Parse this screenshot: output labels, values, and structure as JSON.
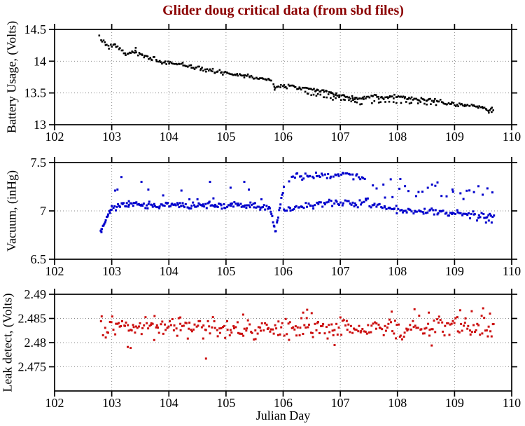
{
  "figure": {
    "title": "Glider doug critical data (from sbd files)",
    "title_color": "#8B0000",
    "xlabel": "Julian Day",
    "background": "#ffffff"
  },
  "chart_data": [
    {
      "id": "battery",
      "type": "scatter",
      "ylabel": "Battery Usage, (Volts)",
      "marker_color": "#000000",
      "marker_size": 2.6,
      "seed": 7,
      "xlim": [
        102,
        110
      ],
      "ylim": [
        13,
        14.5
      ],
      "xticks": [
        102,
        103,
        104,
        105,
        106,
        107,
        108,
        109,
        110
      ],
      "xtick_labels": [
        "102",
        "103",
        "104",
        "105",
        "106",
        "107",
        "108",
        "109",
        "110"
      ],
      "yticks": [
        13,
        13.5,
        14,
        14.5
      ],
      "ytick_labels": [
        "13",
        "13.5",
        "14",
        "14.5"
      ],
      "grid_x": [
        103,
        104,
        105,
        106,
        107,
        108,
        109
      ],
      "grid_y": [
        13.5,
        14
      ],
      "segments": [
        {
          "x0": 102.78,
          "x1": 109.68,
          "n": 330,
          "jitter": 0.016,
          "anchors": [
            [
              102.78,
              14.37
            ],
            [
              102.85,
              14.32
            ],
            [
              102.95,
              14.22
            ],
            [
              103.05,
              14.25
            ],
            [
              103.15,
              14.18
            ],
            [
              103.25,
              14.1
            ],
            [
              103.38,
              14.15
            ],
            [
              103.48,
              14.12
            ],
            [
              103.6,
              14.07
            ],
            [
              103.75,
              14.03
            ],
            [
              103.9,
              13.98
            ],
            [
              104.05,
              13.97
            ],
            [
              104.2,
              13.96
            ],
            [
              104.35,
              13.92
            ],
            [
              104.5,
              13.89
            ],
            [
              104.65,
              13.87
            ],
            [
              104.8,
              13.84
            ],
            [
              105.0,
              13.81
            ],
            [
              105.2,
              13.79
            ],
            [
              105.4,
              13.76
            ],
            [
              105.6,
              13.73
            ],
            [
              105.78,
              13.7
            ],
            [
              105.85,
              13.59
            ],
            [
              106.0,
              13.61
            ],
            [
              106.2,
              13.6
            ],
            [
              106.45,
              13.57
            ],
            [
              106.7,
              13.53
            ],
            [
              106.9,
              13.48
            ],
            [
              107.1,
              13.44
            ],
            [
              107.3,
              13.4
            ],
            [
              107.45,
              13.44
            ],
            [
              107.6,
              13.45
            ],
            [
              107.8,
              13.43
            ],
            [
              108.0,
              13.44
            ],
            [
              108.2,
              13.42
            ],
            [
              108.45,
              13.4
            ],
            [
              108.7,
              13.37
            ],
            [
              108.9,
              13.34
            ],
            [
              109.1,
              13.32
            ],
            [
              109.3,
              13.29
            ],
            [
              109.5,
              13.27
            ],
            [
              109.68,
              13.23
            ]
          ]
        },
        {
          "x0": 106.35,
          "x1": 107.4,
          "n": 26,
          "jitter": 0.013,
          "anchors": [
            [
              106.35,
              13.5
            ],
            [
              106.7,
              13.45
            ],
            [
              107.0,
              13.4
            ],
            [
              107.4,
              13.33
            ]
          ]
        },
        {
          "x0": 107.5,
          "x1": 108.7,
          "n": 18,
          "jitter": 0.012,
          "anchors": [
            [
              107.5,
              13.36
            ],
            [
              108.1,
              13.35
            ],
            [
              108.7,
              13.32
            ]
          ]
        }
      ],
      "outliers": [
        [
          103.42,
          14.21
        ],
        [
          105.85,
          13.55
        ],
        [
          109.6,
          13.19
        ],
        [
          109.65,
          13.2
        ]
      ]
    },
    {
      "id": "vacuum",
      "type": "scatter",
      "ylabel": "Vacuum, (inHg)",
      "marker_color": "#0000CC",
      "marker_size": 3,
      "seed": 11,
      "xlim": [
        102,
        110
      ],
      "ylim": [
        6.5,
        7.5
      ],
      "xticks": [
        102,
        103,
        104,
        105,
        106,
        107,
        108,
        109,
        110
      ],
      "xtick_labels": [
        "102",
        "103",
        "104",
        "105",
        "106",
        "107",
        "108",
        "109",
        "110"
      ],
      "yticks": [
        6.5,
        7,
        7.5
      ],
      "ytick_labels": [
        "6.5",
        "7",
        "7.5"
      ],
      "grid_x": [
        103,
        104,
        105,
        106,
        107,
        108,
        109
      ],
      "grid_y": [
        7
      ],
      "segments": [
        {
          "x0": 102.8,
          "x1": 103.0,
          "n": 15,
          "jitter": 0.012,
          "anchors": [
            [
              102.8,
              6.8
            ],
            [
              102.85,
              6.84
            ],
            [
              102.9,
              6.92
            ],
            [
              102.95,
              6.98
            ],
            [
              103.0,
              7.02
            ]
          ]
        },
        {
          "x0": 103.0,
          "x1": 105.78,
          "n": 140,
          "jitter": 0.016,
          "anchors": [
            [
              103.0,
              7.03
            ],
            [
              103.2,
              7.06
            ],
            [
              103.5,
              7.07
            ],
            [
              103.8,
              7.05
            ],
            [
              104.1,
              7.06
            ],
            [
              104.4,
              7.05
            ],
            [
              104.7,
              7.06
            ],
            [
              105.0,
              7.05
            ],
            [
              105.3,
              7.06
            ],
            [
              105.6,
              7.04
            ],
            [
              105.78,
              7.02
            ]
          ]
        },
        {
          "x0": 105.78,
          "x1": 105.88,
          "n": 8,
          "jitter": 0.008,
          "anchors": [
            [
              105.78,
              7.0
            ],
            [
              105.82,
              6.9
            ],
            [
              105.86,
              6.8
            ],
            [
              105.88,
              6.78
            ]
          ]
        },
        {
          "x0": 105.88,
          "x1": 106.02,
          "n": 10,
          "jitter": 0.015,
          "anchors": [
            [
              105.88,
              6.85
            ],
            [
              105.95,
              7.05
            ],
            [
              106.02,
              7.28
            ]
          ]
        },
        {
          "x0": 106.1,
          "x1": 107.45,
          "n": 48,
          "jitter": 0.018,
          "anchors": [
            [
              106.1,
              7.3
            ],
            [
              106.25,
              7.35
            ],
            [
              106.5,
              7.37
            ],
            [
              106.75,
              7.36
            ],
            [
              107.0,
              7.39
            ],
            [
              107.2,
              7.37
            ],
            [
              107.45,
              7.34
            ]
          ]
        },
        {
          "x0": 106.0,
          "x1": 107.5,
          "n": 60,
          "jitter": 0.018,
          "anchors": [
            [
              106.0,
              7.0
            ],
            [
              106.3,
              7.04
            ],
            [
              106.6,
              7.07
            ],
            [
              106.9,
              7.09
            ],
            [
              107.2,
              7.07
            ],
            [
              107.5,
              7.09
            ]
          ]
        },
        {
          "x0": 107.5,
          "x1": 109.7,
          "n": 95,
          "jitter": 0.02,
          "anchors": [
            [
              107.5,
              7.07
            ],
            [
              107.8,
              7.03
            ],
            [
              108.1,
              7.01
            ],
            [
              108.5,
              7.0
            ],
            [
              108.9,
              6.98
            ],
            [
              109.2,
              6.96
            ],
            [
              109.45,
              6.94
            ],
            [
              109.7,
              6.95
            ]
          ]
        },
        {
          "x0": 107.55,
          "x1": 109.68,
          "n": 30,
          "jitter": 0.05,
          "anchors": [
            [
              107.55,
              7.28
            ],
            [
              107.8,
              7.2
            ],
            [
              108.05,
              7.25
            ],
            [
              108.3,
              7.17
            ],
            [
              108.55,
              7.27
            ],
            [
              108.8,
              7.2
            ],
            [
              109.05,
              7.2
            ],
            [
              109.3,
              7.24
            ],
            [
              109.5,
              7.18
            ],
            [
              109.68,
              7.2
            ]
          ]
        }
      ],
      "outliers": [
        [
          102.82,
          6.78
        ],
        [
          103.06,
          7.21
        ],
        [
          103.1,
          7.22
        ],
        [
          103.17,
          7.35
        ],
        [
          103.3,
          7.1
        ],
        [
          103.52,
          7.3
        ],
        [
          103.64,
          7.22
        ],
        [
          103.9,
          7.16
        ],
        [
          104.22,
          7.21
        ],
        [
          104.36,
          7.12
        ],
        [
          104.5,
          7.12
        ],
        [
          104.72,
          7.3
        ],
        [
          104.78,
          7.13
        ],
        [
          105.08,
          7.24
        ],
        [
          105.32,
          7.3
        ],
        [
          105.4,
          7.22
        ],
        [
          105.62,
          7.12
        ],
        [
          109.55,
          6.88
        ],
        [
          109.6,
          6.9
        ],
        [
          109.65,
          6.88
        ]
      ]
    },
    {
      "id": "leak",
      "type": "scatter",
      "ylabel": "Leak detect, (Volts)",
      "marker_color": "#CC1111",
      "marker_size": 3,
      "seed": 13,
      "xlim": [
        102,
        110
      ],
      "ylim": [
        2.47,
        2.49
      ],
      "xticks": [
        102,
        103,
        104,
        105,
        106,
        107,
        108,
        109,
        110
      ],
      "xtick_labels": [
        "102",
        "103",
        "104",
        "105",
        "106",
        "107",
        "108",
        "109",
        "110"
      ],
      "yticks": [
        2.475,
        2.48,
        2.485,
        2.49
      ],
      "ytick_labels": [
        "2.475",
        "2.48",
        "2.485",
        "2.49"
      ],
      "grid_x": [
        103,
        104,
        105,
        106,
        107,
        108,
        109
      ],
      "grid_y": [
        2.475,
        2.48,
        2.485
      ],
      "segments": [
        {
          "x0": 102.8,
          "x1": 109.7,
          "n": 310,
          "jitter": 0.0011,
          "anchors": [
            [
              102.8,
              2.483
            ],
            [
              104.0,
              2.4829
            ],
            [
              105.0,
              2.4831
            ],
            [
              106.0,
              2.483
            ],
            [
              107.0,
              2.4829
            ],
            [
              108.0,
              2.4831
            ],
            [
              109.0,
              2.4832
            ],
            [
              109.7,
              2.4831
            ]
          ]
        }
      ],
      "outliers": [
        [
          103.28,
          2.4791
        ],
        [
          103.33,
          2.4789
        ],
        [
          103.75,
          2.4855
        ],
        [
          104.2,
          2.4852
        ],
        [
          104.65,
          2.4767
        ],
        [
          105.3,
          2.4858
        ],
        [
          106.35,
          2.4862
        ],
        [
          106.42,
          2.4868
        ],
        [
          106.5,
          2.4861
        ],
        [
          106.9,
          2.4795
        ],
        [
          107.9,
          2.4864
        ],
        [
          108.3,
          2.4869
        ],
        [
          108.55,
          2.4862
        ],
        [
          108.6,
          2.4794
        ],
        [
          109.1,
          2.4867
        ],
        [
          109.3,
          2.4865
        ],
        [
          109.5,
          2.4871
        ],
        [
          109.62,
          2.486
        ]
      ]
    }
  ]
}
